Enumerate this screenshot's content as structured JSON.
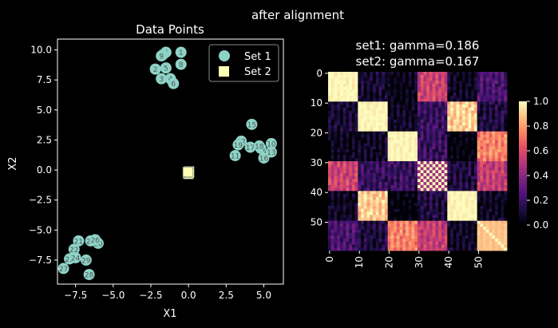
{
  "figure_title": "after alignment",
  "chart_data": [
    {
      "type": "scatter",
      "title": "Data Points",
      "xlabel": "X1",
      "ylabel": "X2",
      "xlim": [
        -8.7,
        6.3
      ],
      "ylim": [
        -9.5,
        10.9
      ],
      "xticks": [
        -7.5,
        -5.0,
        -2.5,
        0.0,
        2.5,
        5.0
      ],
      "yticks": [
        -7.5,
        -5.0,
        -2.5,
        0.0,
        2.5,
        5.0,
        7.5,
        10.0
      ],
      "xtick_labels": [
        "−7.5",
        "−5.0",
        "−2.5",
        "0.0",
        "2.5",
        "5.0"
      ],
      "ytick_labels": [
        "−7.5",
        "−5.0",
        "−2.5",
        "0.0",
        "2.5",
        "5.0",
        "7.5",
        "10.0"
      ],
      "grid": false,
      "legend_position": "top-right",
      "series": [
        {
          "name": "Set 1",
          "marker": "circle",
          "color": "#8dd3c7",
          "points": [
            {
              "label": "0",
              "x": -1.5,
              "y": 9.8
            },
            {
              "label": "1",
              "x": -0.5,
              "y": 9.8
            },
            {
              "label": "2",
              "x": -2.2,
              "y": 8.4
            },
            {
              "label": "3",
              "x": -1.8,
              "y": 7.6
            },
            {
              "label": "4",
              "x": -1.2,
              "y": 7.6
            },
            {
              "label": "5",
              "x": -1.5,
              "y": 8.5
            },
            {
              "label": "6",
              "x": -1.0,
              "y": 7.2
            },
            {
              "label": "7",
              "x": -1.7,
              "y": 9.6
            },
            {
              "label": "8",
              "x": -0.5,
              "y": 8.8
            },
            {
              "label": "9",
              "x": -1.8,
              "y": 9.5
            },
            {
              "label": "10",
              "x": 5.5,
              "y": 2.2
            },
            {
              "label": "11",
              "x": 3.1,
              "y": 1.2
            },
            {
              "label": "12",
              "x": 3.5,
              "y": 2.4
            },
            {
              "label": "13",
              "x": 5.5,
              "y": 1.5
            },
            {
              "label": "14",
              "x": 4.8,
              "y": 1.8
            },
            {
              "label": "15",
              "x": 4.2,
              "y": 3.8
            },
            {
              "label": "16",
              "x": 5.0,
              "y": 1.0
            },
            {
              "label": "17",
              "x": 4.1,
              "y": 1.9
            },
            {
              "label": "18",
              "x": 4.7,
              "y": 2.0
            },
            {
              "label": "19",
              "x": 3.3,
              "y": 2.1
            },
            {
              "label": "20",
              "x": -6.0,
              "y": -6.1
            },
            {
              "label": "21",
              "x": -7.3,
              "y": -5.9
            },
            {
              "label": "22",
              "x": -7.6,
              "y": -6.6
            },
            {
              "label": "23",
              "x": -7.9,
              "y": -7.4
            },
            {
              "label": "24",
              "x": -7.5,
              "y": -7.3
            },
            {
              "label": "25",
              "x": -6.5,
              "y": -5.9
            },
            {
              "label": "26",
              "x": -6.2,
              "y": -5.8
            },
            {
              "label": "27",
              "x": -8.3,
              "y": -8.2
            },
            {
              "label": "28",
              "x": -6.6,
              "y": -8.7
            },
            {
              "label": "29",
              "x": -6.8,
              "y": -7.5
            }
          ]
        },
        {
          "name": "Set 2",
          "marker": "square",
          "color": "#ffffb3",
          "points": [
            {
              "x": 0.0,
              "y": -0.2
            },
            {
              "x": 0.05,
              "y": -0.1
            },
            {
              "x": -0.05,
              "y": -0.3
            },
            {
              "x": 0.0,
              "y": -0.35
            },
            {
              "x": 0.05,
              "y": -0.25
            },
            {
              "x": -0.05,
              "y": -0.15
            }
          ]
        }
      ]
    },
    {
      "type": "heatmap",
      "title_line1": "set1: gamma=0.186",
      "title_line2": "set2: gamma=0.167",
      "size": 60,
      "block_size": 10,
      "colormap": "magma",
      "vmin": 0.0,
      "vmax": 1.0,
      "block_values": [
        [
          1.0,
          0.15,
          0.1,
          0.62,
          0.12,
          0.3
        ],
        [
          0.15,
          1.0,
          0.12,
          0.25,
          0.96,
          0.18
        ],
        [
          0.1,
          0.12,
          1.0,
          0.25,
          0.05,
          0.8
        ],
        [
          0.62,
          0.25,
          0.25,
          0.85,
          0.18,
          0.6
        ],
        [
          0.12,
          0.96,
          0.05,
          0.18,
          1.0,
          0.12
        ],
        [
          0.3,
          0.18,
          0.8,
          0.6,
          0.12,
          0.9
        ]
      ],
      "xtick_labels": [
        "0",
        "10",
        "20",
        "30",
        "40",
        "50"
      ],
      "ytick_labels": [
        "0",
        "10",
        "20",
        "30",
        "40",
        "50"
      ],
      "colorbar_ticks": [
        "0.0",
        "0.2",
        "0.4",
        "0.6",
        "0.8",
        "1.0"
      ]
    }
  ]
}
